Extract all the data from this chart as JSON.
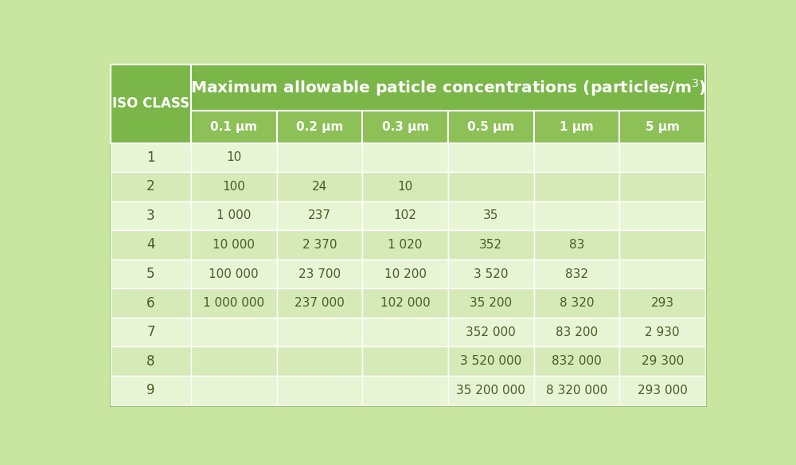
{
  "col_headers": [
    "0.1 μm",
    "0.2 μm",
    "0.3 μm",
    "0.5 μm",
    "1 μm",
    "5 μm"
  ],
  "iso_classes": [
    "1",
    "2",
    "3",
    "4",
    "5",
    "6",
    "7",
    "8",
    "9"
  ],
  "table_data": [
    [
      "10",
      "",
      "",
      "",
      "",
      ""
    ],
    [
      "100",
      "24",
      "10",
      "",
      "",
      ""
    ],
    [
      "1 000",
      "237",
      "102",
      "35",
      "",
      ""
    ],
    [
      "10 000",
      "2 370",
      "1 020",
      "352",
      "83",
      ""
    ],
    [
      "100 000",
      "23 700",
      "10 200",
      "3 520",
      "832",
      ""
    ],
    [
      "1 000 000",
      "237 000",
      "102 000",
      "35 200",
      "8 320",
      "293"
    ],
    [
      "",
      "",
      "",
      "352 000",
      "83 200",
      "2 930"
    ],
    [
      "",
      "",
      "",
      "3 520 000",
      "832 000",
      "29 300"
    ],
    [
      "",
      "",
      "",
      "35 200 000",
      "8 320 000",
      "293 000"
    ]
  ],
  "header_bg_color": "#7ab648",
  "subheader_bg_color": "#8dc057",
  "row_colors": [
    "#e8f5d4",
    "#d6eab8",
    "#e8f5d4",
    "#d6eab8",
    "#e8f5d4",
    "#d6eab8",
    "#e8f5d4",
    "#d6eab8",
    "#e8f5d4"
  ],
  "border_color": "#aacf7a",
  "white_border": "#ffffff",
  "text_color_header": "#ffffff",
  "text_color_data": "#4a5a2a",
  "outer_bg": "#c8e6a0"
}
